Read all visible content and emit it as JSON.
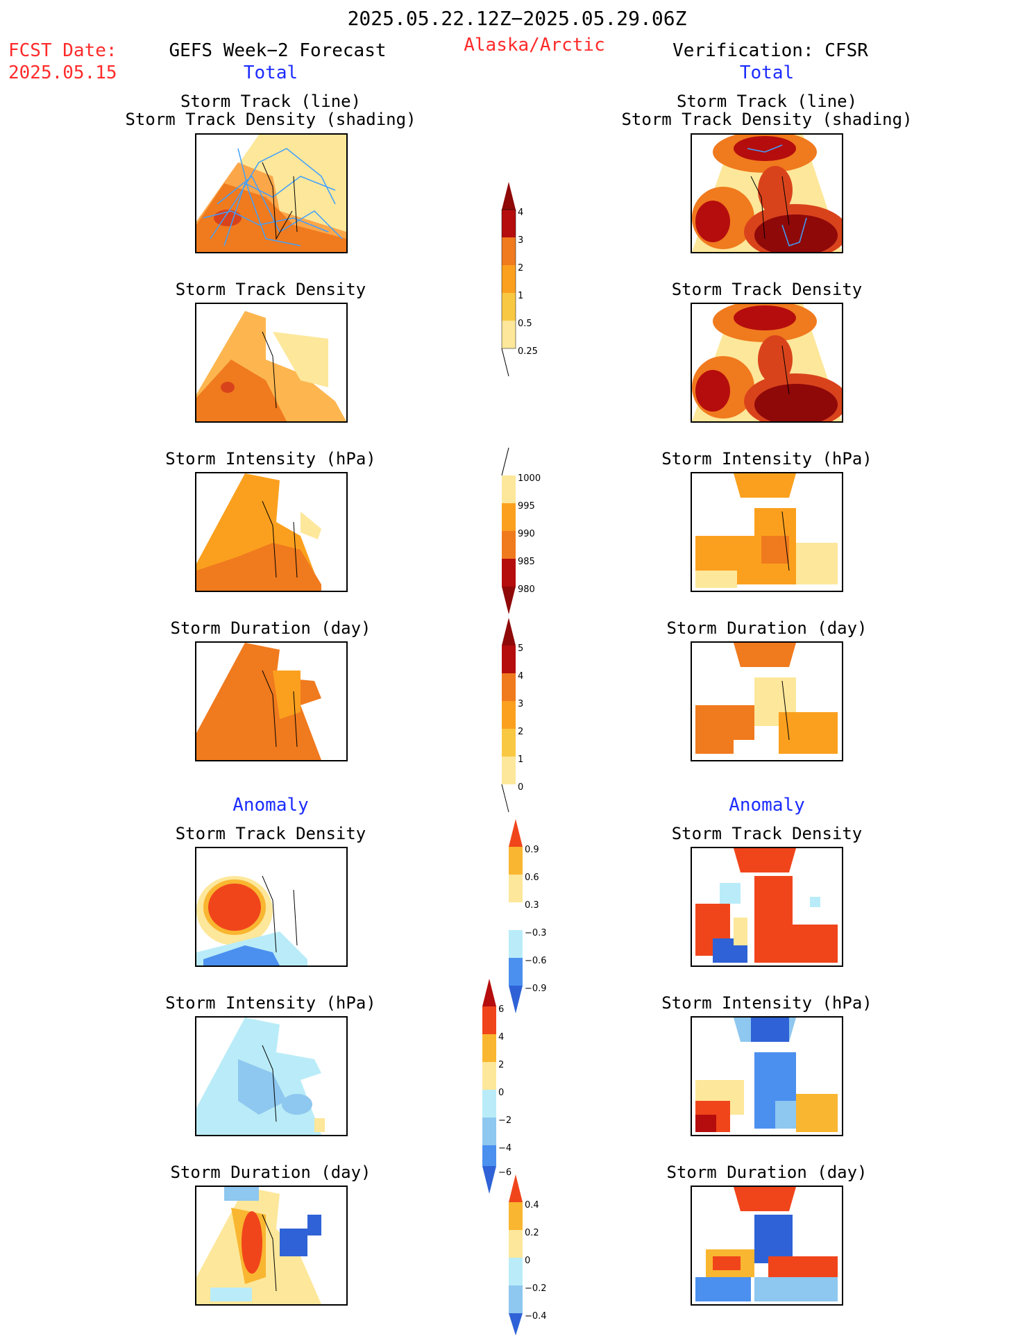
{
  "header": {
    "date_range": "2025.05.22.12Z−2025.05.29.06Z",
    "region": "Alaska/Arctic",
    "fcst_label": "FCST Date:",
    "fcst_date": "2025.05.15",
    "left_title": "GEFS Week−2 Forecast",
    "right_title": "Verification: CFSR",
    "left_total": "Total",
    "right_total": "Total",
    "left_anomaly": "Anomaly",
    "right_anomaly": "Anomaly"
  },
  "panels": {
    "track_line": "Storm Track (line)",
    "track_density_shading": "Storm Track Density (shading)",
    "track_density": "Storm Track Density",
    "intensity": "Storm Intensity (hPa)",
    "duration": "Storm Duration (day)"
  },
  "colorbars": {
    "density": [
      "4",
      "3",
      "2",
      "1",
      "0.5",
      "0.25"
    ],
    "intensity": [
      "1000",
      "995",
      "990",
      "985",
      "980"
    ],
    "duration": [
      "5",
      "4",
      "3",
      "2",
      "1",
      "0"
    ],
    "density_anom": [
      "0.9",
      "0.6",
      "0.3",
      "−0.3",
      "−0.6",
      "−0.9"
    ],
    "intensity_anom": [
      "6",
      "4",
      "2",
      "0",
      "−2",
      "−4",
      "−6"
    ],
    "duration_anom": [
      "0.4",
      "0.2",
      "0",
      "−0.2",
      "−0.4"
    ]
  },
  "colors": {
    "red_text": "#ff2a2a",
    "blue_text": "#1c2cff",
    "track_line": "#3fa0ff"
  }
}
